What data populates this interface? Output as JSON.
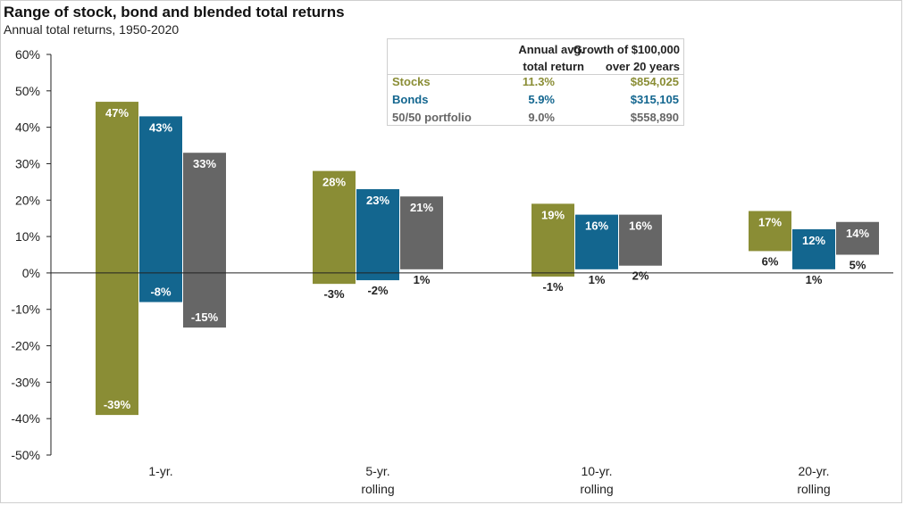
{
  "header": {
    "title": "Range of stock, bond and blended total returns",
    "subtitle": "Annual total returns, 1950-2020"
  },
  "summary_table": {
    "col1_line1": "Annual avg.",
    "col1_line2": "total return",
    "col2_line1": "Growth of $100,000",
    "col2_line2": "over 20 years",
    "rows": [
      {
        "name": "Stocks",
        "return": "11.3%",
        "growth": "$854,025",
        "color": "#8a8d35"
      },
      {
        "name": "Bonds",
        "return": "5.9%",
        "growth": "$315,105",
        "color": "#13668f"
      },
      {
        "name": "50/50 portfolio",
        "return": "9.0%",
        "growth": "$558,890",
        "color": "#666666"
      }
    ]
  },
  "chart_data": {
    "type": "bar",
    "subtype": "floating-range",
    "title": "Range of stock, bond and blended total returns",
    "subtitle": "Annual total returns, 1950-2020",
    "ylim": [
      -50,
      60
    ],
    "yticks": [
      "60%",
      "50%",
      "40%",
      "30%",
      "20%",
      "10%",
      "0%",
      "-10%",
      "-20%",
      "-30%",
      "-40%",
      "-50%"
    ],
    "ytick_values": [
      60,
      50,
      40,
      30,
      20,
      10,
      0,
      -10,
      -20,
      -30,
      -40,
      -50
    ],
    "categories": [
      [
        "1-yr."
      ],
      [
        "5-yr.",
        "rolling"
      ],
      [
        "10-yr.",
        "rolling"
      ],
      [
        "20-yr.",
        "rolling"
      ]
    ],
    "series": [
      {
        "name": "Stocks",
        "color": "#8a8d35",
        "max": [
          47,
          28,
          19,
          17
        ],
        "min": [
          -39,
          -3,
          -1,
          6
        ],
        "max_labels": [
          "47%",
          "28%",
          "19%",
          "17%"
        ],
        "min_labels": [
          "-39%",
          "-3%",
          "-1%",
          "6%"
        ]
      },
      {
        "name": "Bonds",
        "color": "#13668f",
        "max": [
          43,
          23,
          16,
          12
        ],
        "min": [
          -8,
          -2,
          1,
          1
        ],
        "max_labels": [
          "43%",
          "23%",
          "16%",
          "12%"
        ],
        "min_labels": [
          "-8%",
          "-2%",
          "1%",
          "1%"
        ]
      },
      {
        "name": "50/50 portfolio",
        "color": "#666666",
        "max": [
          33,
          21,
          16,
          14
        ],
        "min": [
          -15,
          1,
          2,
          5
        ],
        "max_labels": [
          "33%",
          "21%",
          "16%",
          "14%"
        ],
        "min_labels": [
          "-15%",
          "1%",
          "2%",
          "5%"
        ]
      }
    ],
    "grid": false,
    "legend": "table top-center"
  }
}
